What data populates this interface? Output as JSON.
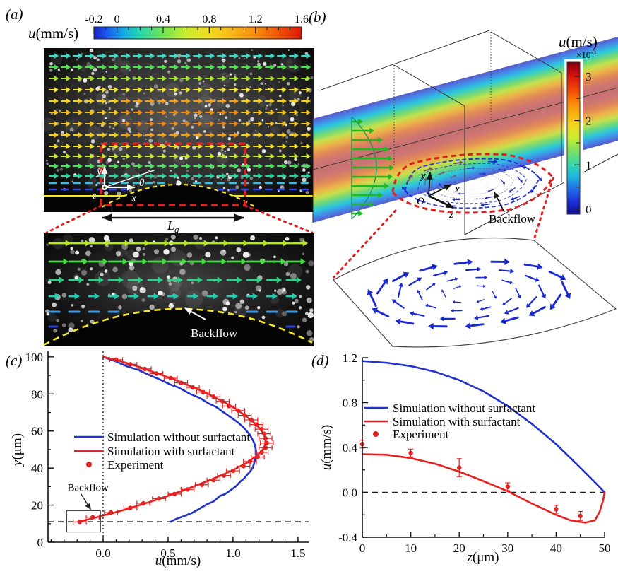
{
  "panels": {
    "a": {
      "label": "(a)",
      "colorbar": {
        "var": "u",
        "unit": "(mm/s)",
        "min": -0.2,
        "max": 1.6,
        "minor_step": 0.1,
        "ticks": [
          [
            -0.2,
            "-0.2"
          ],
          [
            0,
            "0"
          ],
          [
            0.4,
            "0.4"
          ],
          [
            0.8,
            "0.8"
          ],
          [
            1.2,
            "1.2"
          ],
          [
            1.6,
            "1.6"
          ]
        ]
      },
      "annotations": {
        "x": "x",
        "y": "y",
        "z": "z",
        "theta": "θ",
        "L_main": "L",
        "L_sub": "g",
        "backflow": "Backflow"
      },
      "vector_rows_main": [
        {
          "y": 79,
          "color": "#3fd9c4"
        },
        {
          "y": 95,
          "color": "#4fe04f"
        },
        {
          "y": 111,
          "color": "#a9e332"
        },
        {
          "y": 127,
          "color": "#efe82a"
        },
        {
          "y": 143,
          "color": "#f2d322",
          "center_color": "#f2a01e"
        },
        {
          "y": 159,
          "color": "#f0c41e",
          "center_color": "#ee8d14"
        },
        {
          "y": 175,
          "color": "#f0c01e",
          "center_color": "#ec8410"
        },
        {
          "y": 191,
          "color": "#f1cf22",
          "center_color": "#efa01c"
        },
        {
          "y": 207,
          "color": "#efe22a"
        },
        {
          "y": 221,
          "color": "#c7e431"
        },
        {
          "y": 235,
          "color": "#4fdd63"
        },
        {
          "y": 249,
          "color": "#2fd3a8"
        },
        {
          "y": 259,
          "color": "#35bfdd",
          "style": "dash"
        },
        {
          "y": 268,
          "color": "#2f49e8",
          "style": "dash"
        }
      ],
      "vector_rows_inset": [
        {
          "y": 344,
          "color": "#b5e623",
          "len": 30
        },
        {
          "y": 370,
          "color": "#41dd41",
          "len": 27
        },
        {
          "y": 396,
          "color": "#2bd489",
          "len": 21
        },
        {
          "y": 419,
          "color": "#27c9b2",
          "len": 15
        },
        {
          "y": 441,
          "color": "#3f97e0",
          "len": 10,
          "style": "dash"
        },
        {
          "y": 462,
          "color": "#2b3fd9",
          "len": 7,
          "style": "dash"
        }
      ]
    },
    "b": {
      "label": "(b)",
      "colorbar": {
        "var": "u",
        "unit": "(m/s)",
        "mult_base": "×10",
        "mult_exp": "-3",
        "ticks": [
          [
            0,
            "0"
          ],
          [
            1,
            "1"
          ],
          [
            2,
            "2"
          ],
          [
            3,
            "3"
          ]
        ],
        "minor_step": 0.5
      },
      "annotations": {
        "O": "O",
        "x": "x",
        "y": "y",
        "z": "z",
        "backflow": "Backflow"
      }
    },
    "c": {
      "label": "(c)"
    },
    "d": {
      "label": "(d)"
    }
  },
  "chart_data": [
    {
      "panel": "c",
      "type": "line",
      "xlabel_var": "u",
      "xlabel_unit": "(mm/s)",
      "ylabel_var": "y",
      "ylabel_unit": "(μm)",
      "xlim": [
        -0.424,
        1.582
      ],
      "ylim": [
        0,
        103
      ],
      "x_ticks": [
        [
          0.0,
          "0.0"
        ],
        [
          0.5,
          "0.5"
        ],
        [
          1.0,
          "1.0"
        ],
        [
          1.5,
          "1.5"
        ]
      ],
      "y_ticks": [
        [
          0,
          "0"
        ],
        [
          20,
          "20"
        ],
        [
          40,
          "40"
        ],
        [
          60,
          "60"
        ],
        [
          80,
          "80"
        ],
        [
          100,
          "100"
        ]
      ],
      "x_minor": 0.1,
      "y_minor": 10,
      "reference_lines": {
        "vertical_dotted_u": 0.0,
        "horizontal_dashed_y": 11
      },
      "annotation": {
        "text": "Backflow",
        "box_u": [
          -0.28,
          -0.02
        ],
        "box_y": [
          5.5,
          17
        ]
      },
      "series": [
        {
          "name": "Simulation without surfactant",
          "color": "#2133cc",
          "kind": "line",
          "points": [
            [
              0.52,
              11
            ],
            [
              0.56,
              12.5
            ],
            [
              0.62,
              14
            ],
            [
              0.69,
              16
            ],
            [
              0.74,
              18
            ],
            [
              0.8,
              20.5
            ],
            [
              0.85,
              22
            ],
            [
              0.9,
              25
            ],
            [
              0.94,
              26
            ],
            [
              0.98,
              28
            ],
            [
              1.02,
              30
            ],
            [
              1.06,
              33
            ],
            [
              1.08,
              34
            ],
            [
              1.11,
              36.5
            ],
            [
              1.13,
              38
            ],
            [
              1.15,
              40
            ],
            [
              1.16,
              42
            ],
            [
              1.175,
              46
            ],
            [
              1.18,
              48
            ],
            [
              1.175,
              50
            ],
            [
              1.17,
              52
            ],
            [
              1.16,
              54
            ],
            [
              1.13,
              58
            ],
            [
              1.08,
              62
            ],
            [
              1.04,
              64.5
            ],
            [
              1.01,
              66
            ],
            [
              0.93,
              70
            ],
            [
              0.87,
              73
            ],
            [
              0.81,
              75
            ],
            [
              0.74,
              78
            ],
            [
              0.67,
              80
            ],
            [
              0.58,
              83.5
            ],
            [
              0.52,
              85
            ],
            [
              0.43,
              88
            ],
            [
              0.36,
              90
            ],
            [
              0.27,
              93
            ],
            [
              0.18,
              95
            ],
            [
              0.1,
              97.5
            ],
            [
              0.04,
              99
            ],
            [
              0.0,
              100
            ]
          ]
        },
        {
          "name": "Simulation with surfactant",
          "color": "#e32222",
          "kind": "line",
          "points": [
            [
              -0.19,
              11
            ],
            [
              -0.13,
              12
            ],
            [
              -0.07,
              13
            ],
            [
              -0.02,
              14
            ],
            [
              0.03,
              15
            ],
            [
              0.09,
              16
            ],
            [
              0.19,
              18
            ],
            [
              0.28,
              20
            ],
            [
              0.37,
              22
            ],
            [
              0.5,
              25
            ],
            [
              0.62,
              28
            ],
            [
              0.73,
              31
            ],
            [
              0.84,
              34
            ],
            [
              0.94,
              37
            ],
            [
              1.03,
              40
            ],
            [
              1.11,
              43
            ],
            [
              1.17,
              46
            ],
            [
              1.22,
              49
            ],
            [
              1.245,
              52
            ],
            [
              1.25,
              55
            ],
            [
              1.24,
              58
            ],
            [
              1.21,
              61
            ],
            [
              1.17,
              64
            ],
            [
              1.1,
              68
            ],
            [
              1.02,
              72
            ],
            [
              0.92,
              76
            ],
            [
              0.81,
              80
            ],
            [
              0.68,
              84
            ],
            [
              0.54,
              88
            ],
            [
              0.38,
              92
            ],
            [
              0.26,
              95
            ],
            [
              0.12,
              98
            ],
            [
              0.0,
              100
            ]
          ]
        },
        {
          "name": "Experiment",
          "color": "#e32222",
          "kind": "scatter",
          "u_error": 0.05,
          "points": [
            [
              -0.18,
              11
            ],
            [
              -0.08,
              13.5
            ],
            [
              0.06,
              16
            ],
            [
              0.21,
              18.5
            ],
            [
              0.31,
              21
            ],
            [
              0.43,
              23.5
            ],
            [
              0.55,
              26
            ],
            [
              0.65,
              28.5
            ],
            [
              0.76,
              31
            ],
            [
              0.85,
              33.5
            ],
            [
              0.93,
              36
            ],
            [
              1.0,
              38.5
            ],
            [
              1.08,
              41
            ],
            [
              1.13,
              43.5
            ],
            [
              1.19,
              46
            ],
            [
              1.22,
              48.5
            ],
            [
              1.25,
              51
            ],
            [
              1.26,
              53.5
            ],
            [
              1.25,
              56
            ],
            [
              1.24,
              58.5
            ],
            [
              1.22,
              61
            ],
            [
              1.18,
              63.5
            ],
            [
              1.14,
              66
            ],
            [
              1.09,
              68.5
            ],
            [
              1.04,
              71
            ],
            [
              0.97,
              73.5
            ],
            [
              0.92,
              76
            ],
            [
              0.85,
              78.5
            ],
            [
              0.77,
              81
            ],
            [
              0.69,
              83.5
            ],
            [
              0.6,
              86
            ],
            [
              0.52,
              88.5
            ],
            [
              0.41,
              91
            ],
            [
              0.32,
              93.5
            ],
            [
              0.21,
              96
            ],
            [
              0.1,
              98.5
            ]
          ]
        }
      ]
    },
    {
      "panel": "d",
      "type": "line",
      "xlabel_var": "z",
      "xlabel_unit": "(μm)",
      "ylabel_var": "u",
      "ylabel_unit": "(mm/s)",
      "xlim": [
        0,
        50
      ],
      "ylim": [
        -0.4,
        1.2
      ],
      "x_ticks": [
        [
          0,
          "0"
        ],
        [
          10,
          "10"
        ],
        [
          20,
          "20"
        ],
        [
          30,
          "30"
        ],
        [
          40,
          "40"
        ],
        [
          50,
          "50"
        ]
      ],
      "y_ticks": [
        [
          -0.4,
          "-0.4"
        ],
        [
          0.0,
          "0.0"
        ],
        [
          0.4,
          "0.4"
        ],
        [
          0.8,
          "0.8"
        ],
        [
          1.2,
          "1.2"
        ]
      ],
      "x_minor": 5,
      "y_minor": 0.2,
      "reference_lines": {
        "horizontal_dashed_u": 0.0
      },
      "series": [
        {
          "name": "Simulation without surfactant",
          "color": "#2133cc",
          "kind": "line",
          "points": [
            [
              0,
              1.17
            ],
            [
              5,
              1.155
            ],
            [
              10,
              1.125
            ],
            [
              15,
              1.075
            ],
            [
              20,
              1.0
            ],
            [
              25,
              0.9
            ],
            [
              30,
              0.77
            ],
            [
              35,
              0.61
            ],
            [
              40,
              0.43
            ],
            [
              45,
              0.22
            ],
            [
              48,
              0.09
            ],
            [
              50,
              0.0
            ]
          ]
        },
        {
          "name": "Simulation with surfactant",
          "color": "#e32222",
          "kind": "line",
          "points": [
            [
              0,
              0.34
            ],
            [
              5,
              0.335
            ],
            [
              10,
              0.305
            ],
            [
              15,
              0.255
            ],
            [
              20,
              0.185
            ],
            [
              25,
              0.1
            ],
            [
              30,
              0.01
            ],
            [
              35,
              -0.1
            ],
            [
              40,
              -0.2
            ],
            [
              43,
              -0.25
            ],
            [
              46,
              -0.27
            ],
            [
              48,
              -0.25
            ],
            [
              49,
              -0.17
            ],
            [
              49.7,
              -0.07
            ],
            [
              50,
              0.0
            ]
          ]
        },
        {
          "name": "Experiment",
          "color": "#e32222",
          "kind": "scatter",
          "points": [
            [
              0,
              0.43,
              0.035
            ],
            [
              10,
              0.35,
              0.035
            ],
            [
              20,
              0.22,
              0.08
            ],
            [
              30,
              0.05,
              0.035
            ],
            [
              40,
              -0.15,
              0.035
            ],
            [
              45,
              -0.21,
              0.04
            ]
          ]
        }
      ]
    }
  ]
}
